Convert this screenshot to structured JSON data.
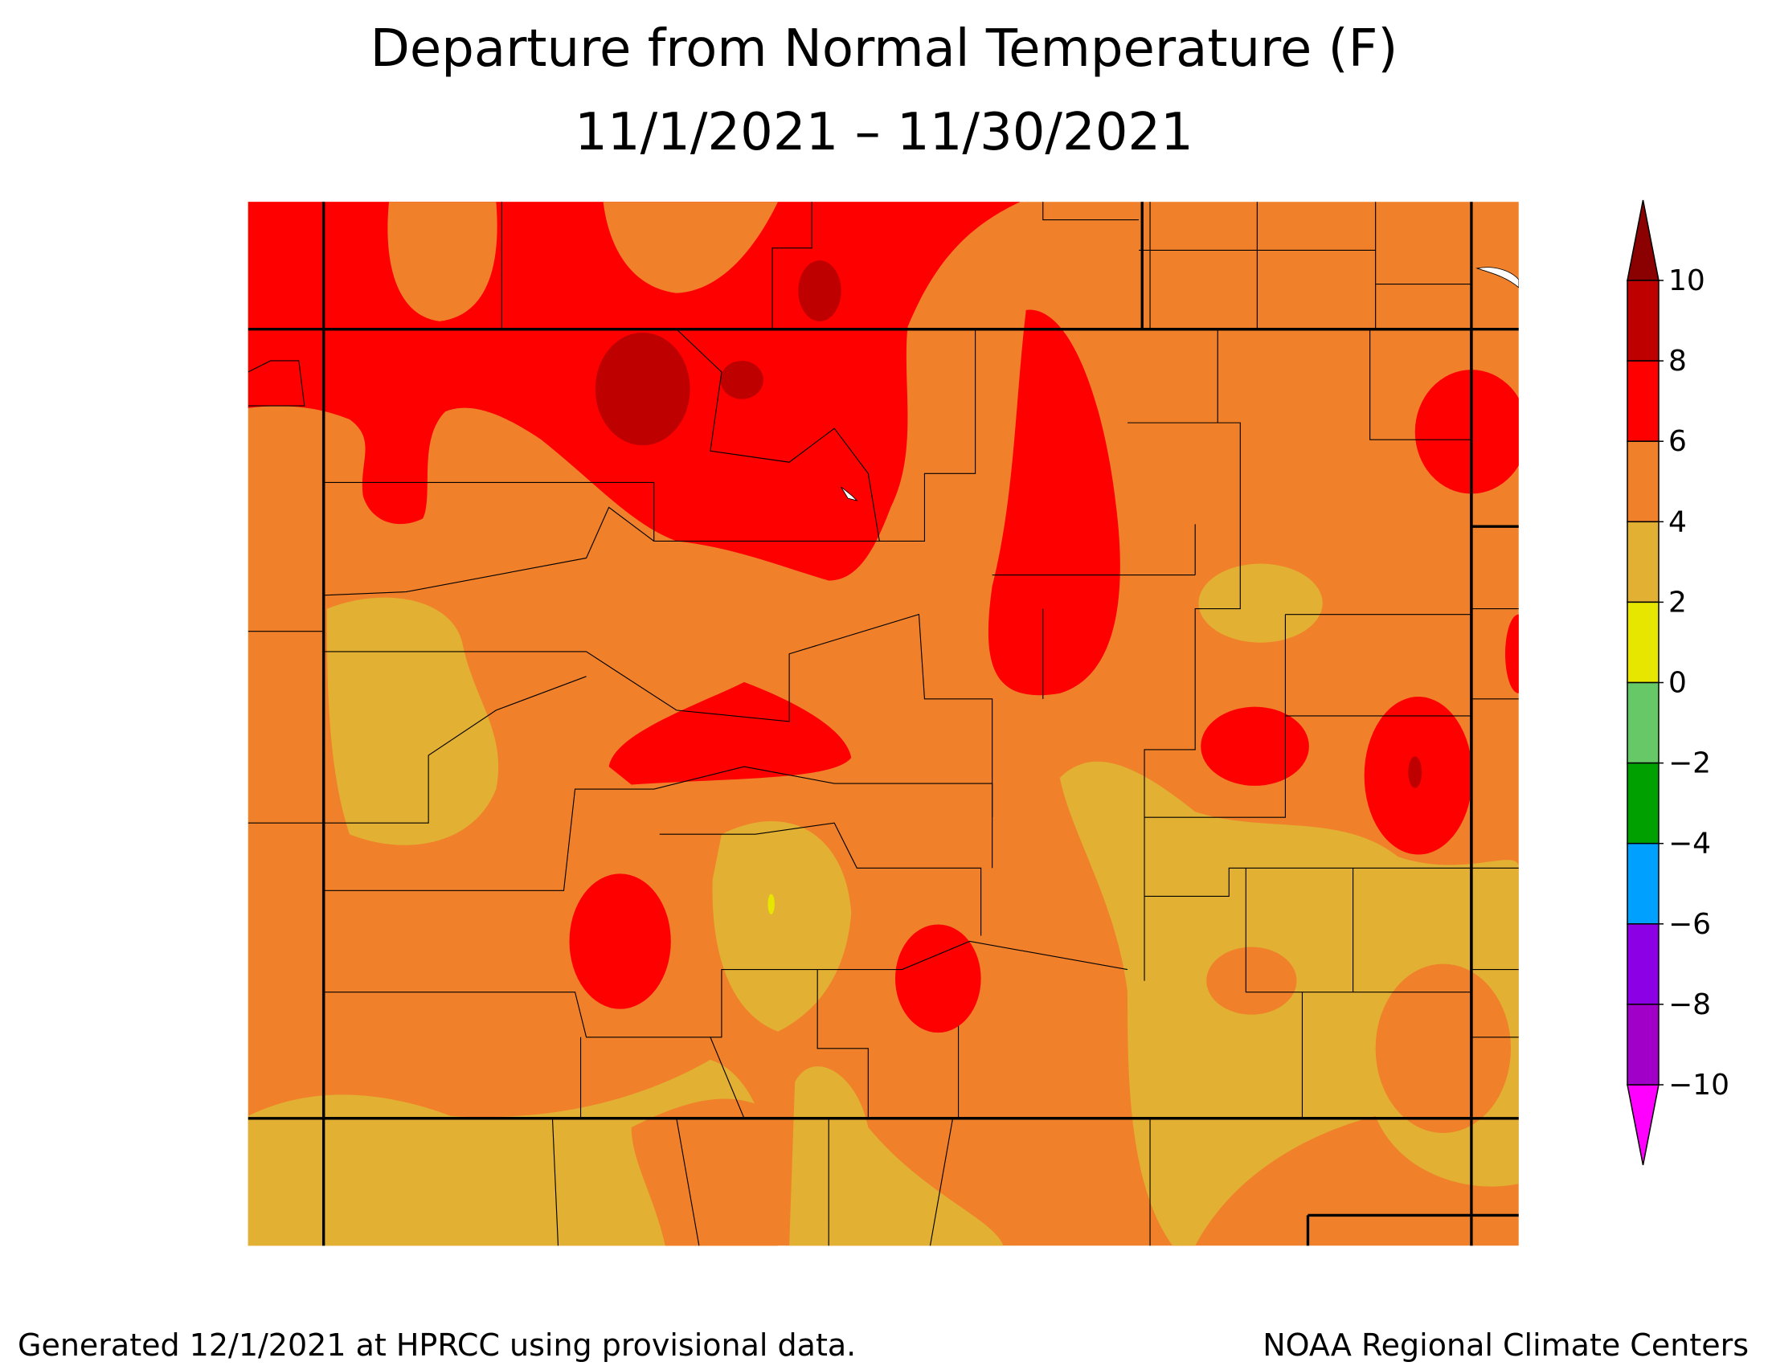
{
  "title": "Departure from Normal Temperature (F)",
  "subtitle": "11/1/2021 – 11/30/2021",
  "legend": {
    "ticks": [
      10,
      8,
      6,
      4,
      2,
      0,
      {
        "value": -2,
        "label": "−2"
      },
      {
        "value": -4,
        "label": "−4"
      },
      {
        "value": -6,
        "label": "−6"
      },
      {
        "value": -8,
        "label": "−8"
      },
      {
        "value": -10,
        "label": "−10"
      }
    ],
    "colors": [
      "#8b0000",
      "#be0000",
      "#ff0000",
      "#f0802a",
      "#e2b032",
      "#e6e600",
      "#66c866",
      "#00a000",
      "#00a0ff",
      "#8c00e6",
      "#a000c8",
      "#ff00ff"
    ]
  },
  "footer_left": "Generated 12/1/2021 at HPRCC using provisional data.",
  "footer_right": "NOAA Regional Climate Centers"
}
